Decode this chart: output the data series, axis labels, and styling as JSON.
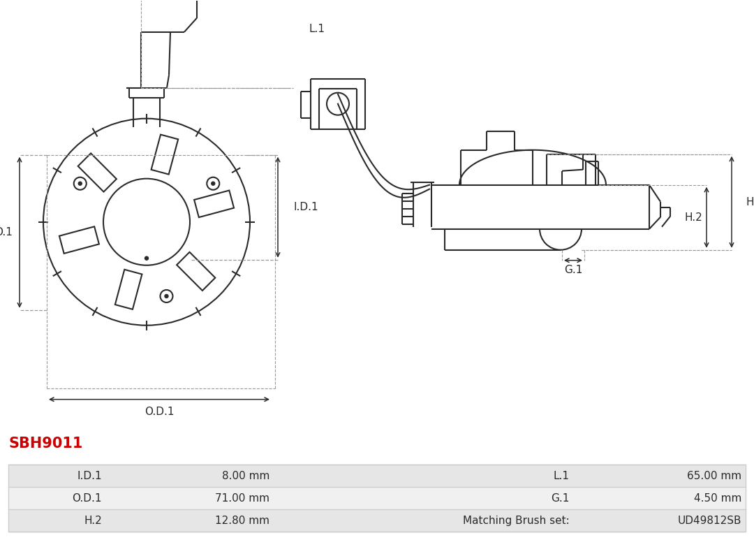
{
  "title": "SBH9011",
  "title_color": "#cc0000",
  "background_color": "#ffffff",
  "line_color": "#2a2a2a",
  "dim_color": "#2a2a2a",
  "dash_color": "#999999",
  "table_rows": [
    {
      "label1": "I.D.1",
      "val1": "8.00 mm",
      "label2": "L.1",
      "val2": "65.00 mm"
    },
    {
      "label1": "O.D.1",
      "val1": "71.00 mm",
      "label2": "G.1",
      "val2": "4.50 mm"
    },
    {
      "label1": "H.2",
      "val1": "12.80 mm",
      "label2": "Matching Brush set:",
      "val2": "UD49812SB"
    }
  ],
  "table_bg": [
    "#e6e6e6",
    "#f0f0f0",
    "#e6e6e6"
  ],
  "table_border": "#cccccc",
  "fig_width": 10.8,
  "fig_height": 7.73,
  "dpi": 100
}
